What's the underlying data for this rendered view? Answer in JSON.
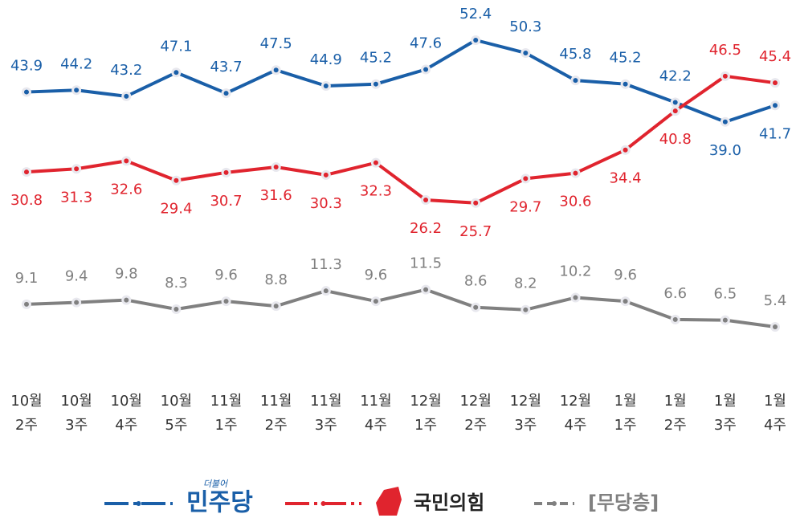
{
  "chart_data": {
    "type": "line",
    "categories": [
      "10월 2주",
      "10월 3주",
      "10월 4주",
      "10월 5주",
      "11월 1주",
      "11월 2주",
      "11월 3주",
      "11월 4주",
      "12월 1주",
      "12월 2주",
      "12월 3주",
      "12월 4주",
      "1월 1주",
      "1월 2주",
      "1월 3주",
      "1월 4주"
    ],
    "series": [
      {
        "name": "민주당",
        "color": "#1a5fa8",
        "values": [
          43.9,
          44.2,
          43.2,
          47.1,
          43.7,
          47.5,
          44.9,
          45.2,
          47.6,
          52.4,
          50.3,
          45.8,
          45.2,
          42.2,
          39.0,
          41.7
        ],
        "value_labels": [
          "43.9",
          "44.2",
          "43.2",
          "47.1",
          "43.7",
          "47.5",
          "44.9",
          "45.2",
          "47.6",
          "52.4",
          "50.3",
          "45.8",
          "45.2",
          "42.2",
          "39.0",
          "41.7"
        ]
      },
      {
        "name": "국민의힘",
        "color": "#e0242e",
        "values": [
          30.8,
          31.3,
          32.6,
          29.4,
          30.7,
          31.6,
          30.3,
          32.3,
          26.2,
          25.7,
          29.7,
          30.6,
          34.4,
          40.8,
          46.5,
          45.4
        ]
      },
      {
        "name": "[무당층]",
        "color": "#808080",
        "values": [
          9.1,
          9.4,
          9.8,
          8.3,
          9.6,
          8.8,
          11.3,
          9.6,
          11.5,
          8.6,
          8.2,
          10.2,
          9.6,
          6.6,
          6.5,
          5.4
        ]
      }
    ],
    "logo_caption": "더불어"
  }
}
